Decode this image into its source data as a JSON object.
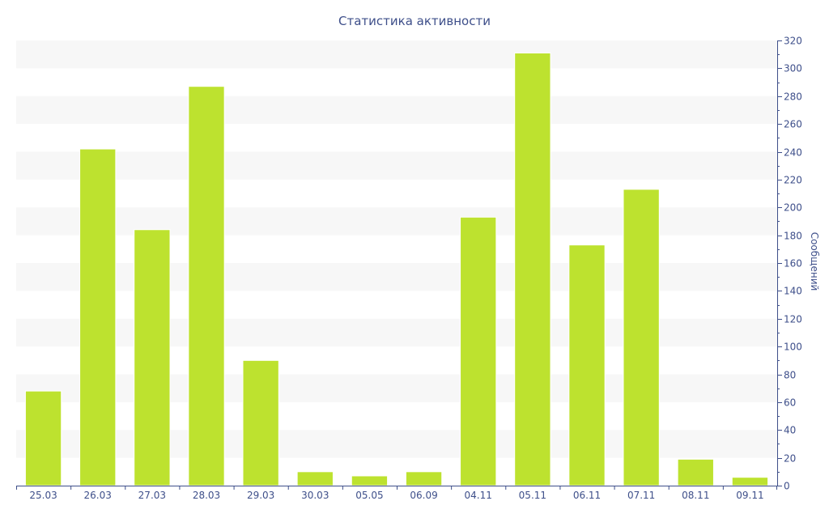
{
  "chart_data": {
    "type": "bar",
    "title": "Статистика активности",
    "xlabel": "",
    "ylabel": "Сообщений",
    "ylim": [
      0,
      320
    ],
    "y_tick_step": 20,
    "y_axis_side": "right",
    "grid": "alternating horizontal bands",
    "legend": "none",
    "bar_color": "#bde22f",
    "categories": [
      "25.03",
      "26.03",
      "27.03",
      "28.03",
      "29.03",
      "30.03",
      "05.05",
      "06.09",
      "04.11",
      "05.11",
      "06.11",
      "07.11",
      "08.11",
      "09.11"
    ],
    "values": [
      68,
      242,
      184,
      287,
      90,
      10,
      7,
      10,
      193,
      311,
      173,
      213,
      19,
      6
    ]
  }
}
